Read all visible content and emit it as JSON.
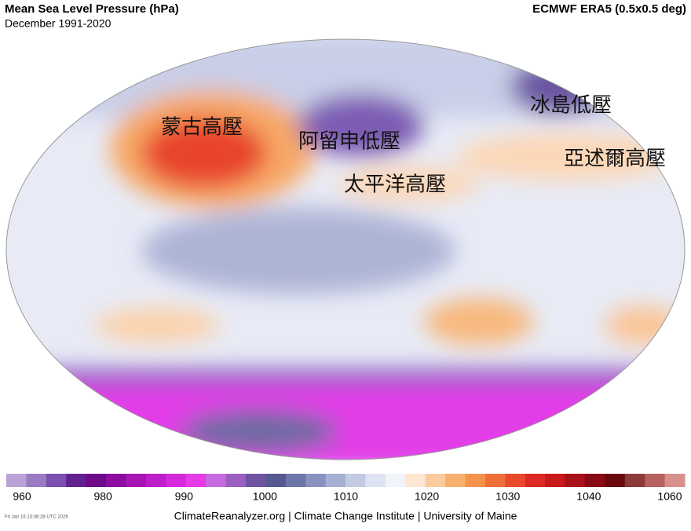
{
  "header": {
    "title": "Mean Sea Level Pressure (hPa)",
    "subtitle": "December 1991-2020",
    "source": "ECMWF ERA5 (0.5x0.5 deg)"
  },
  "map": {
    "labels": [
      "蒙古高壓",
      "阿留申低壓",
      "冰島低壓",
      "亞述爾高壓",
      "太平洋高壓"
    ]
  },
  "colorbar": {
    "colors": [
      "#b9a3d6",
      "#9b7cc4",
      "#7d4fae",
      "#63208f",
      "#6e0a8a",
      "#8c0d9f",
      "#a516b4",
      "#bd1fc9",
      "#d52adc",
      "#e63ce8",
      "#c56ce0",
      "#9a5fc0",
      "#6e54a3",
      "#55598f",
      "#6c76a8",
      "#8a93bf",
      "#a6b0d2",
      "#c3cbe3",
      "#dde3f2",
      "#f2f4fa",
      "#fde6d2",
      "#fbcb9e",
      "#f8b06e",
      "#f5934c",
      "#f0703a",
      "#e94a2e",
      "#dd2a24",
      "#c81a1a",
      "#a8101a",
      "#870a14",
      "#6a0810",
      "#8c3b3a",
      "#b7625f",
      "#d8908c"
    ],
    "ticks": [
      960,
      980,
      990,
      1000,
      1010,
      1020,
      1030,
      1040,
      1060
    ]
  },
  "footer": {
    "credit": "ClimateReanalyzer.org | Climate Change Institute | University of Maine",
    "timestamp": "Fri Jan 16 13:36:28 UTC 2026"
  }
}
